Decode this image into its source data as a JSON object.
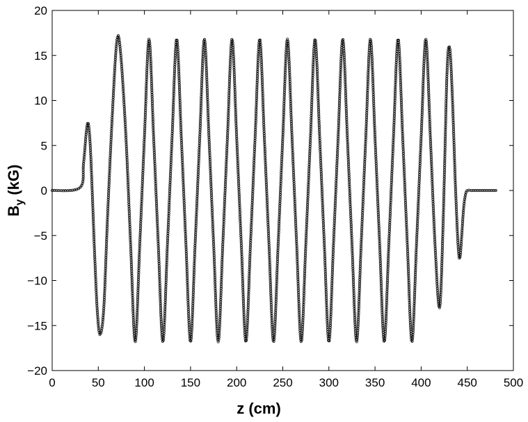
{
  "chart_data": {
    "type": "line",
    "title": "",
    "xlabel": "z (cm)",
    "ylabel_main": "B",
    "ylabel_sub": "y",
    "ylabel_unit": "(kG)",
    "xlim": [
      0,
      500
    ],
    "ylim": [
      -20,
      20
    ],
    "xticks": [
      0,
      50,
      100,
      150,
      200,
      250,
      300,
      350,
      400,
      450,
      500
    ],
    "yticks": [
      -20,
      -15,
      -10,
      -5,
      0,
      5,
      10,
      15,
      20
    ],
    "xtick_labels": [
      "0",
      "50",
      "100",
      "150",
      "200",
      "250",
      "300",
      "350",
      "400",
      "450",
      "500"
    ],
    "ytick_labels": [
      "−20",
      "−15",
      "−10",
      "−5",
      "0",
      "5",
      "10",
      "15",
      "20"
    ],
    "grid": false,
    "legend": "none",
    "line_color": "#444444",
    "marker_color": "#000000",
    "series": [
      {
        "marker": "open-circle",
        "x": [
          0,
          30,
          34,
          37,
          39,
          41,
          43,
          46,
          49,
          52,
          56,
          60,
          65,
          70,
          74,
          80,
          85,
          90,
          95,
          100,
          105,
          110,
          115,
          120,
          125,
          130,
          135,
          140,
          145,
          150,
          155,
          160,
          165,
          170,
          175,
          180,
          185,
          190,
          195,
          200,
          205,
          210,
          215,
          220,
          225,
          230,
          235,
          240,
          245,
          250,
          255,
          260,
          265,
          270,
          275,
          280,
          285,
          290,
          295,
          300,
          305,
          310,
          315,
          320,
          325,
          330,
          335,
          340,
          345,
          350,
          355,
          360,
          365,
          370,
          375,
          380,
          385,
          390,
          395,
          400,
          405,
          410,
          415,
          420,
          424,
          428,
          431,
          434,
          437,
          440,
          442,
          444,
          446,
          448,
          450,
          455,
          465,
          482
        ],
        "y": [
          0,
          0.3,
          3,
          6.5,
          7.5,
          5.5,
          1,
          -7,
          -13.5,
          -16,
          -13,
          -3,
          8,
          16.5,
          15.5,
          5.9,
          -5.9,
          -16.8,
          -5.9,
          5.9,
          16.8,
          5.9,
          -5.9,
          -16.8,
          -5.9,
          5.9,
          16.8,
          5.9,
          -5.9,
          -16.8,
          -5.9,
          5.9,
          16.8,
          5.9,
          -5.9,
          -16.8,
          -5.9,
          5.9,
          16.8,
          5.9,
          -5.9,
          -16.8,
          -5.9,
          5.9,
          16.8,
          5.9,
          -5.9,
          -16.8,
          -5.9,
          5.9,
          16.8,
          5.9,
          -5.9,
          -16.8,
          -5.9,
          5.9,
          16.8,
          5.9,
          -5.9,
          -16.8,
          -5.9,
          5.9,
          16.8,
          5.9,
          -5.9,
          -16.8,
          -5.9,
          5.9,
          16.8,
          5.9,
          -5.9,
          -16.8,
          -5.9,
          5.9,
          16.8,
          5.9,
          -5.9,
          -16.8,
          -5.9,
          5.9,
          16.8,
          5.9,
          -5.9,
          -13,
          -3,
          13,
          15.8,
          10,
          1,
          -6,
          -7.5,
          -5,
          -2,
          -0.5,
          0,
          0,
          0,
          0
        ]
      }
    ]
  }
}
